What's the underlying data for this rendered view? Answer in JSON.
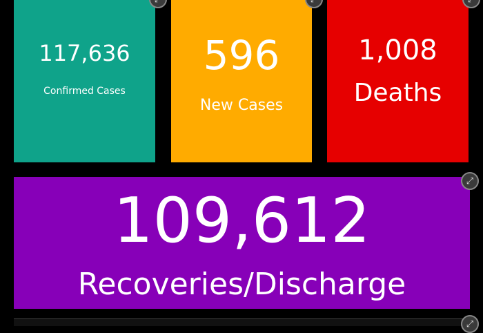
{
  "colors": {
    "confirmed": "#0fa38a",
    "new": "#ffab00",
    "deaths": "#e60000",
    "recoveries": "#8700b8"
  },
  "tiles": [
    {
      "value": "117,636",
      "label": "Confirmed Cases"
    },
    {
      "value": "596",
      "label": "New Cases"
    },
    {
      "value": "1,008",
      "label": "Deaths"
    },
    {
      "value": "109,612",
      "label": "Recoveries/Discharge"
    }
  ],
  "icons": {
    "expand": "expand-icon",
    "glyph": "⤢"
  }
}
